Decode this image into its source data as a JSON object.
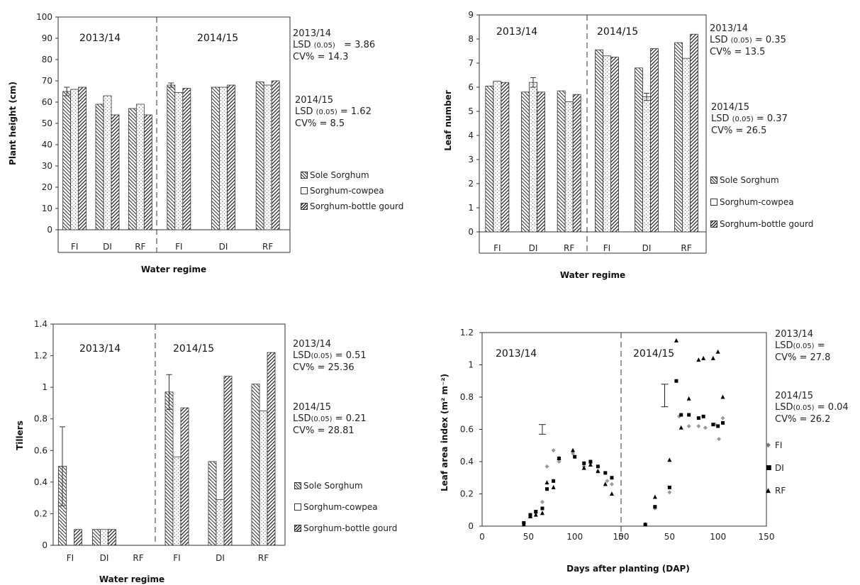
{
  "chart_data": [
    {
      "type": "bar",
      "ylabel": "Plant height (cm)",
      "xlabel": "Water regime",
      "ylim": [
        0,
        100
      ],
      "yticks": [
        0,
        10,
        20,
        30,
        40,
        50,
        60,
        70,
        80,
        90,
        100
      ],
      "panels": [
        "2013/14",
        "2014/15"
      ],
      "categories": [
        "FI",
        "DI",
        "RF",
        "FI",
        "DI",
        "RF"
      ],
      "series": [
        {
          "name": "Sole Sorghum",
          "pattern": "back",
          "values": [
            65,
            59,
            57,
            68,
            67,
            69.5
          ],
          "errors": [
            2,
            0,
            0,
            1,
            0,
            0
          ]
        },
        {
          "name": "Sorghum-cowpea",
          "pattern": "dots",
          "values": [
            66,
            63,
            59,
            64.5,
            67,
            68
          ],
          "errors": [
            0,
            0,
            0,
            0,
            0,
            0
          ]
        },
        {
          "name": "Sorghum-bottle gourd",
          "pattern": "fwd",
          "values": [
            67,
            54,
            54,
            66.5,
            68,
            70
          ],
          "errors": [
            0,
            0,
            0,
            0,
            0,
            0
          ]
        }
      ],
      "annotations": {
        "y2013": "2013/14",
        "lsd2013_pre": "LSD",
        "lsd2013_sub": "(0.05)",
        "lsd2013_val": "= 3.86",
        "cv2013": "CV% = 14.3",
        "y2014": "2014/15",
        "lsd2014_pre": "LSD",
        "lsd2014_sub": "(0.05)",
        "lsd2014_val": "= 1.62",
        "cv2014": "CV% = 8.5"
      }
    },
    {
      "type": "bar",
      "ylabel": "Leaf number",
      "xlabel": "Water regime",
      "ylim": [
        0,
        9
      ],
      "yticks": [
        0,
        1,
        2,
        3,
        4,
        5,
        6,
        7,
        8,
        9
      ],
      "panels": [
        "2013/14",
        "2014/15"
      ],
      "categories": [
        "FI",
        "DI",
        "RF",
        "FI",
        "DI",
        "RF"
      ],
      "series": [
        {
          "name": "Sole Sorghum",
          "pattern": "back",
          "values": [
            6.05,
            5.8,
            5.85,
            7.55,
            6.8,
            7.85
          ],
          "errors": [
            0,
            0,
            0,
            0,
            0,
            0
          ]
        },
        {
          "name": "Sorghum-cowpea",
          "pattern": "dots",
          "values": [
            6.25,
            6.2,
            5.4,
            7.3,
            5.6,
            7.2
          ],
          "errors": [
            0,
            0.2,
            0,
            0,
            0.15,
            0
          ]
        },
        {
          "name": "Sorghum-bottle gourd",
          "pattern": "fwd",
          "values": [
            6.2,
            5.8,
            5.7,
            7.25,
            7.6,
            8.2
          ],
          "errors": [
            0,
            0,
            0,
            0,
            0,
            0
          ]
        }
      ],
      "annotations": {
        "y2013": "2013/14",
        "lsd2013_pre": "LSD",
        "lsd2013_sub": "(0.05)",
        "lsd2013_val": "= 0.35",
        "cv2013": "CV% = 13.5",
        "y2014": "2014/15",
        "lsd2014_pre": "LSD",
        "lsd2014_sub": "(0.05)",
        "lsd2014_val": "= 0.37",
        "cv2014": "CV% = 26.5"
      }
    },
    {
      "type": "bar",
      "ylabel": "Tillers",
      "xlabel": "Water regime",
      "ylim": [
        0,
        1.4
      ],
      "yticks": [
        0,
        0.2,
        0.4,
        0.6,
        0.8,
        1,
        1.2,
        1.4
      ],
      "panels": [
        "2013/14",
        "2014/15"
      ],
      "categories": [
        "FI",
        "DI",
        "RF",
        "FI",
        "DI",
        "RF"
      ],
      "series": [
        {
          "name": "Sole Sorghum",
          "pattern": "back",
          "values": [
            0.5,
            0.1,
            0,
            0.97,
            0.53,
            1.02
          ],
          "errors": [
            0.25,
            0,
            0,
            0.11,
            0,
            0
          ]
        },
        {
          "name": "Sorghum-cowpea",
          "pattern": "dots",
          "values": [
            0,
            0.1,
            0,
            0.56,
            0.29,
            0.85
          ],
          "errors": [
            0,
            0,
            0,
            0,
            0,
            0
          ]
        },
        {
          "name": "Sorghum-bottle gourd",
          "pattern": "fwd",
          "values": [
            0.1,
            0.1,
            0,
            0.87,
            1.07,
            1.22
          ],
          "errors": [
            0,
            0,
            0,
            0,
            0,
            0
          ]
        }
      ],
      "annotations": {
        "y2013": "2013/14",
        "lsd2013_pre": "LSD",
        "lsd2013_sub": "(0.05)",
        "lsd2013_val": "= 0.51",
        "cv2013": "CV% = 25.36",
        "y2014": "2014/15",
        "lsd2014_pre": "LSD",
        "lsd2014_sub": "(0.05)",
        "lsd2014_val": "= 0.21",
        "cv2014": "CV% = 28.81"
      }
    },
    {
      "type": "scatter",
      "ylabel": "Leaf area index (m² m⁻²)",
      "xlabel": "Days after planting (DAP)",
      "ylim": [
        0,
        1.2
      ],
      "yticks": [
        0,
        0.2,
        0.4,
        0.6,
        0.8,
        1,
        1.2
      ],
      "xticks": [
        0,
        50,
        100,
        150
      ],
      "panels": [
        "2013/14",
        "2014/15"
      ],
      "lsd_bars": [
        {
          "panel": 0,
          "x": 65,
          "y": 0.6,
          "half": 0.03
        },
        {
          "panel": 1,
          "x": 45,
          "y": 0.81,
          "half": 0.07
        }
      ],
      "series": [
        {
          "name": "FI",
          "marker": "diamond",
          "points": [
            [
              [
                45,
                0.02
              ],
              [
                52,
                0.06
              ],
              [
                58,
                0.08
              ],
              [
                65,
                0.15
              ],
              [
                70,
                0.37
              ],
              [
                77,
                0.47
              ],
              [
                83,
                0.4
              ],
              [
                98,
                0.45
              ],
              [
                110,
                0.37
              ],
              [
                117,
                0.39
              ],
              [
                125,
                0.34
              ],
              [
                135,
                0.28
              ],
              [
                140,
                0.26
              ]
            ],
            [
              [
                25,
                0.01
              ],
              [
                35,
                0.11
              ],
              [
                50,
                0.21
              ],
              [
                60,
                0.68
              ],
              [
                70,
                0.62
              ],
              [
                80,
                0.62
              ],
              [
                87,
                0.61
              ],
              [
                97,
                0.63
              ],
              [
                101,
                0.54
              ],
              [
                105,
                0.67
              ]
            ]
          ]
        },
        {
          "name": "DI",
          "marker": "square",
          "points": [
            [
              [
                45,
                0.02
              ],
              [
                52,
                0.07
              ],
              [
                58,
                0.09
              ],
              [
                65,
                0.11
              ],
              [
                70,
                0.23
              ],
              [
                77,
                0.28
              ],
              [
                83,
                0.42
              ],
              [
                100,
                0.43
              ],
              [
                110,
                0.39
              ],
              [
                117,
                0.4
              ],
              [
                125,
                0.37
              ],
              [
                133,
                0.33
              ],
              [
                140,
                0.3
              ]
            ],
            [
              [
                25,
                0.01
              ],
              [
                35,
                0.12
              ],
              [
                50,
                0.24
              ],
              [
                57,
                0.9
              ],
              [
                62,
                0.69
              ],
              [
                70,
                0.69
              ],
              [
                80,
                0.67
              ],
              [
                85,
                0.68
              ],
              [
                95,
                0.63
              ],
              [
                100,
                0.62
              ],
              [
                105,
                0.64
              ]
            ]
          ]
        },
        {
          "name": "RF",
          "marker": "triangle",
          "points": [
            [
              [
                45,
                0.01
              ],
              [
                52,
                0.06
              ],
              [
                58,
                0.07
              ],
              [
                65,
                0.08
              ],
              [
                70,
                0.27
              ],
              [
                77,
                0.24
              ],
              [
                83,
                0.42
              ],
              [
                98,
                0.47
              ],
              [
                110,
                0.36
              ],
              [
                117,
                0.38
              ],
              [
                125,
                0.34
              ],
              [
                133,
                0.26
              ],
              [
                140,
                0.2
              ]
            ],
            [
              [
                25,
                0.01
              ],
              [
                35,
                0.18
              ],
              [
                50,
                0.41
              ],
              [
                57,
                1.15
              ],
              [
                62,
                0.61
              ],
              [
                70,
                0.79
              ],
              [
                80,
                1.03
              ],
              [
                85,
                1.04
              ],
              [
                95,
                1.04
              ],
              [
                100,
                1.08
              ],
              [
                105,
                0.8
              ]
            ]
          ]
        }
      ],
      "annotations": {
        "y2013": "2013/14",
        "lsd2013_pre": "LSD",
        "lsd2013_sub": "(0.05)",
        "lsd2013_val": "=",
        "cv2013": "CV% = 27.8",
        "y2014": "2014/15",
        "lsd2014_pre": "LSD",
        "lsd2014_sub": "(0.05)",
        "lsd2014_val": "= 0.04",
        "cv2014": "CV% = 26.2"
      }
    }
  ]
}
